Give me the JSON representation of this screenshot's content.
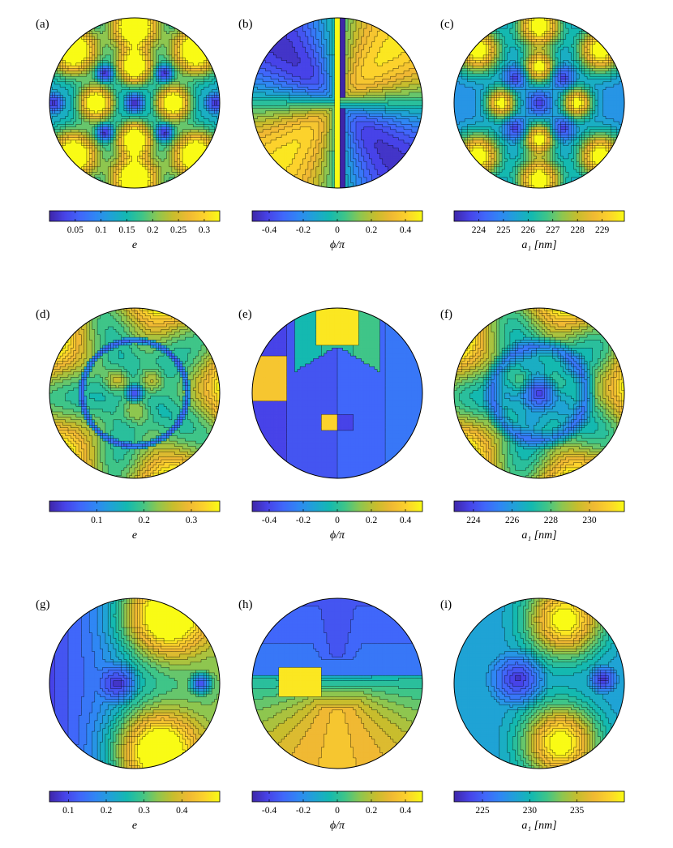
{
  "colormap": [
    "#3e26a8",
    "#4743e8",
    "#4067fa",
    "#2f87f4",
    "#1fa3d5",
    "#14b9b0",
    "#3fc588",
    "#8ec64f",
    "#c8bd2d",
    "#f0b933",
    "#fcd22c",
    "#f9fb15"
  ],
  "chart_data": [
    {
      "type": "heatmap",
      "panel_label": "(a)",
      "quantity": "e",
      "colorbar_label": "e",
      "ticks": [
        "0.05",
        "0.1",
        "0.15",
        "0.2",
        "0.25",
        "0.3"
      ],
      "range": [
        0.0,
        0.33
      ]
    },
    {
      "type": "heatmap",
      "panel_label": "(b)",
      "quantity": "phi_over_pi",
      "colorbar_label": "ϕ/π",
      "ticks": [
        "-0.4",
        "-0.2",
        "0",
        "0.2",
        "0.4"
      ],
      "range": [
        -0.5,
        0.5
      ]
    },
    {
      "type": "heatmap",
      "panel_label": "(c)",
      "quantity": "a1",
      "colorbar_label": "a₁ [nm]",
      "ticks": [
        "224",
        "225",
        "226",
        "227",
        "228",
        "229"
      ],
      "range": [
        223.0,
        229.9
      ]
    },
    {
      "type": "heatmap",
      "panel_label": "(d)",
      "quantity": "e",
      "colorbar_label": "e",
      "ticks": [
        "0.1",
        "0.2",
        "0.3"
      ],
      "range": [
        0.0,
        0.36
      ]
    },
    {
      "type": "heatmap",
      "panel_label": "(e)",
      "quantity": "phi_over_pi",
      "colorbar_label": "ϕ/π",
      "ticks": [
        "-0.4",
        "-0.2",
        "0",
        "0.2",
        "0.4"
      ],
      "range": [
        -0.5,
        0.5
      ]
    },
    {
      "type": "heatmap",
      "panel_label": "(f)",
      "quantity": "a1",
      "colorbar_label": "a₁ [nm]",
      "ticks": [
        "224",
        "226",
        "228",
        "230"
      ],
      "range": [
        223.0,
        231.8
      ]
    },
    {
      "type": "heatmap",
      "panel_label": "(g)",
      "quantity": "e",
      "colorbar_label": "e",
      "ticks": [
        "0.1",
        "0.2",
        "0.3",
        "0.4"
      ],
      "range": [
        0.05,
        0.5
      ]
    },
    {
      "type": "heatmap",
      "panel_label": "(h)",
      "quantity": "phi_over_pi",
      "colorbar_label": "ϕ/π",
      "ticks": [
        "-0.4",
        "-0.2",
        "0",
        "0.2",
        "0.4"
      ],
      "range": [
        -0.5,
        0.5
      ]
    },
    {
      "type": "heatmap",
      "panel_label": "(i)",
      "quantity": "a1",
      "colorbar_label": "a₁ [nm]",
      "ticks": [
        "225",
        "230",
        "235"
      ],
      "range": [
        222.0,
        240.0
      ]
    }
  ]
}
